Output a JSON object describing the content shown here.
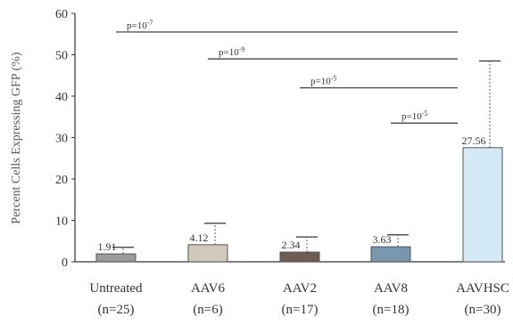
{
  "chart_data": {
    "type": "bar",
    "ylabel": "Percent Cells Expressing GFP (%)",
    "ylim": [
      0,
      60
    ],
    "yticks": [
      0,
      10,
      20,
      30,
      40,
      50,
      60
    ],
    "grid": false,
    "categories": [
      {
        "name": "Untreated",
        "n": "(n=25)",
        "value": 1.91,
        "value_label": "1.91",
        "error_upper": 3.5,
        "color": "#9a9a9a"
      },
      {
        "name": "AAV6",
        "n": "(n=6)",
        "value": 4.12,
        "value_label": "4.12",
        "error_upper": 9.3,
        "color": "#d2c9bd"
      },
      {
        "name": "AAV2",
        "n": "(n=17)",
        "value": 2.34,
        "value_label": "2.34",
        "error_upper": 6.0,
        "color": "#6f5d52"
      },
      {
        "name": "AAV8",
        "n": "(n=18)",
        "value": 3.63,
        "value_label": "3.63",
        "error_upper": 6.5,
        "color": "#7896ae"
      },
      {
        "name": "AAVHSC",
        "n": "(n=30)",
        "value": 27.56,
        "value_label": "27.56",
        "error_upper": 48.5,
        "color": "#d4eaf6"
      }
    ],
    "comparisons": [
      {
        "from": "Untreated",
        "to": "AAVHSC",
        "y": 55.5,
        "label_base": "p=10",
        "label_exp": "-7"
      },
      {
        "from": "AAV6",
        "to": "AAVHSC",
        "y": 49,
        "label_base": "p=10",
        "label_exp": "-9"
      },
      {
        "from": "AAV2",
        "to": "AAVHSC",
        "y": 42,
        "label_base": "p=10",
        "label_exp": "-5"
      },
      {
        "from": "AAV8",
        "to": "AAVHSC",
        "y": 33.5,
        "label_base": "p=10",
        "label_exp": "-5"
      }
    ]
  }
}
